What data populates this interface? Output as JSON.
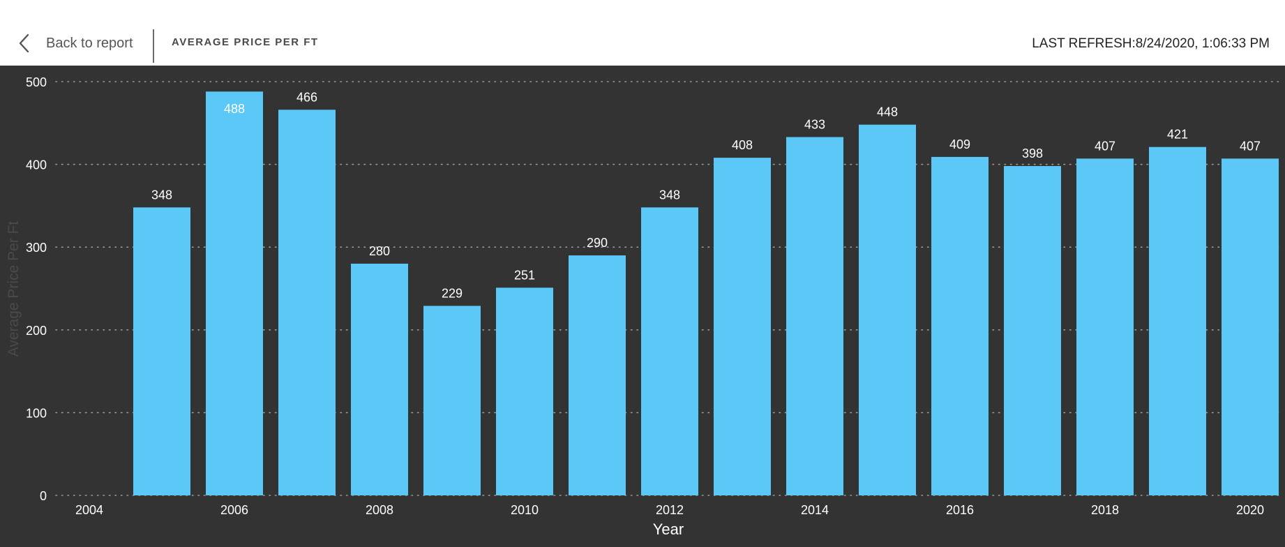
{
  "header": {
    "back_label": "Back to report",
    "title": "AVERAGE PRICE PER FT",
    "refresh_label": "LAST REFRESH:8/24/2020, 1:06:33 PM"
  },
  "icons": {
    "back": "chevron-left-icon"
  },
  "colors": {
    "bar": "#5bc8f8",
    "background": "#333333",
    "header": "#ffffff"
  },
  "chart_data": {
    "type": "bar",
    "xlabel": "Year",
    "ylabel": "Average Price Per Ft",
    "ylim": [
      0,
      500
    ],
    "yticks": [
      0,
      100,
      200,
      300,
      400,
      500
    ],
    "xlim": [
      2004,
      2020
    ],
    "xticks": [
      2004,
      2006,
      2008,
      2010,
      2012,
      2014,
      2016,
      2018,
      2020
    ],
    "grid": true,
    "x": [
      2005,
      2006,
      2007,
      2008,
      2009,
      2010,
      2011,
      2012,
      2013,
      2014,
      2015,
      2016,
      2017,
      2018,
      2019,
      2020
    ],
    "values": [
      348,
      488,
      466,
      280,
      229,
      251,
      290,
      348,
      408,
      433,
      448,
      409,
      398,
      407,
      421,
      407
    ]
  }
}
